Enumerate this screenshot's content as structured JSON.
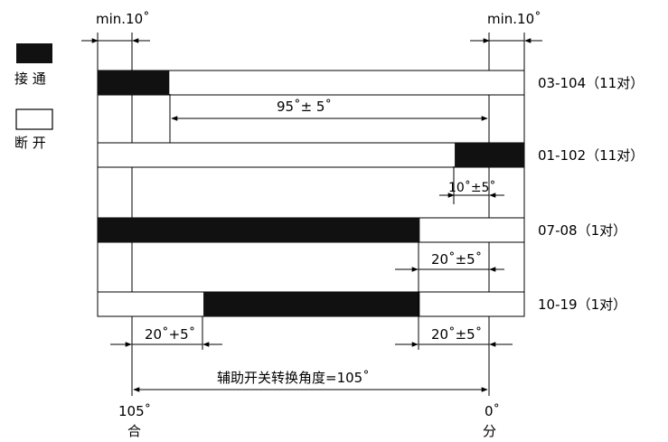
{
  "legend": {
    "on_label": "接 通",
    "off_label": "断 开"
  },
  "top_margins": {
    "left": "min.10˚",
    "right": "min.10˚"
  },
  "rows": [
    {
      "name": "03-104（11对）",
      "segments": [
        [
          0,
          0.168
        ]
      ]
    },
    {
      "name": "01-102（11对）",
      "segments": [
        [
          0.837,
          1.0
        ]
      ]
    },
    {
      "name": "07-08（1对）",
      "segments": [
        [
          0,
          0.755
        ]
      ]
    },
    {
      "name": "10-19（1对）",
      "segments": [
        [
          0.248,
          0.755
        ]
      ]
    }
  ],
  "dimensions": {
    "d1": "95˚± 5˚",
    "d2": "10˚±5˚",
    "d3": "20˚±5˚",
    "d4_left": "20˚+5˚",
    "d4_right": "20˚±5˚",
    "total": "辅助开关转换角度=105˚"
  },
  "axis": {
    "start_angle": "105˚",
    "start_state": "合",
    "end_angle": "0˚",
    "end_state": "分"
  },
  "colors": {
    "on": "#111111",
    "off": "#ffffff",
    "line": "#000000"
  }
}
